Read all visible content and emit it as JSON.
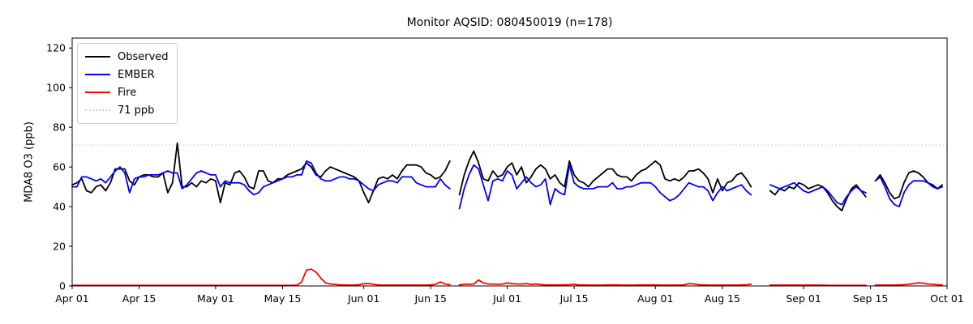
{
  "chart_data": {
    "type": "line",
    "title": "Monitor AQSID: 080450019 (n=178)",
    "xlabel": "",
    "ylabel": "MDA8 O3 (ppb)",
    "ylim": [
      0,
      125
    ],
    "yticks": [
      0,
      20,
      40,
      60,
      80,
      100,
      120
    ],
    "x_unit": "days since Apr 01",
    "x_range_days": 183,
    "xticks": [
      {
        "label": "Apr 01",
        "day": 0
      },
      {
        "label": "Apr 15",
        "day": 14
      },
      {
        "label": "May 01",
        "day": 30
      },
      {
        "label": "May 15",
        "day": 44
      },
      {
        "label": "Jun 01",
        "day": 61
      },
      {
        "label": "Jun 15",
        "day": 75
      },
      {
        "label": "Jul 01",
        "day": 91
      },
      {
        "label": "Jul 15",
        "day": 105
      },
      {
        "label": "Aug 01",
        "day": 122
      },
      {
        "label": "Aug 15",
        "day": 136
      },
      {
        "label": "Sep 01",
        "day": 153
      },
      {
        "label": "Sep 15",
        "day": 167
      },
      {
        "label": "Oct 01",
        "day": 183
      }
    ],
    "threshold": {
      "value": 71,
      "label": "71 ppb",
      "color": "#d3d3d3",
      "style": "dotted"
    },
    "grid": false,
    "legend_position": "upper-left",
    "legend": [
      {
        "label": "Observed",
        "color": "#000000",
        "style": "solid"
      },
      {
        "label": "EMBER",
        "color": "#0000ff",
        "style": "solid"
      },
      {
        "label": "Fire",
        "color": "#ff0000",
        "style": "solid"
      },
      {
        "label": "71 ppb",
        "color": "#d3d3d3",
        "style": "dotted"
      }
    ],
    "series": [
      {
        "name": "Observed",
        "color": "#000000",
        "width": 1.8,
        "values": [
          51,
          52,
          54,
          48,
          47,
          50,
          51,
          48,
          52,
          59,
          59,
          59,
          53,
          51,
          55,
          56,
          56,
          55,
          55,
          57,
          47,
          52,
          72,
          50,
          50,
          52,
          50,
          53,
          52,
          54,
          53,
          42,
          52,
          51,
          57,
          58,
          55,
          50,
          49,
          58,
          58,
          53,
          52,
          54,
          54,
          56,
          57,
          58,
          59,
          62,
          60,
          56,
          55,
          58,
          60,
          59,
          58,
          57,
          56,
          55,
          53,
          47,
          42,
          48,
          54,
          55,
          54,
          56,
          54,
          58,
          61,
          61,
          61,
          60,
          57,
          56,
          54,
          55,
          58,
          63,
          null,
          46,
          56,
          63,
          68,
          62,
          54,
          53,
          58,
          55,
          56,
          60,
          62,
          56,
          60,
          52,
          55,
          59,
          61,
          59,
          54,
          56,
          52,
          50,
          63,
          56,
          53,
          52,
          50,
          53,
          55,
          57,
          59,
          59,
          56,
          55,
          55,
          53,
          56,
          58,
          59,
          61,
          63,
          61,
          54,
          53,
          54,
          53,
          55,
          58,
          58,
          59,
          57,
          54,
          47,
          54,
          48,
          52,
          53,
          56,
          57,
          54,
          50,
          null,
          null,
          null,
          48,
          46,
          49,
          48,
          50,
          49,
          52,
          51,
          49,
          50,
          51,
          50,
          47,
          43,
          40,
          38,
          44,
          49,
          51,
          48,
          45,
          null,
          53,
          56,
          52,
          47,
          44,
          45,
          52,
          57,
          58,
          57,
          55,
          52,
          51,
          49,
          51
        ]
      },
      {
        "name": "EMBER",
        "color": "#0000ff",
        "width": 1.8,
        "values": [
          50,
          50,
          55,
          55,
          54,
          53,
          54,
          52,
          55,
          58,
          60,
          57,
          47,
          54,
          55,
          55,
          56,
          56,
          56,
          57,
          58,
          57,
          57,
          49,
          51,
          54,
          57,
          58,
          57,
          56,
          56,
          50,
          53,
          52,
          52,
          52,
          51,
          48,
          46,
          47,
          50,
          51,
          52,
          53,
          54,
          55,
          55,
          56,
          56,
          63,
          62,
          57,
          54,
          53,
          53,
          54,
          55,
          55,
          54,
          54,
          53,
          51,
          49,
          48,
          51,
          52,
          53,
          53,
          52,
          55,
          55,
          55,
          52,
          51,
          50,
          50,
          50,
          54,
          51,
          49,
          null,
          39,
          49,
          56,
          61,
          59,
          51,
          43,
          53,
          54,
          53,
          58,
          56,
          49,
          52,
          55,
          52,
          50,
          51,
          54,
          41,
          49,
          47,
          46,
          61,
          52,
          50,
          49,
          49,
          49,
          50,
          50,
          50,
          52,
          49,
          49,
          50,
          50,
          51,
          52,
          52,
          52,
          50,
          47,
          45,
          43,
          44,
          46,
          49,
          52,
          51,
          50,
          50,
          48,
          43,
          47,
          50,
          48,
          49,
          50,
          51,
          48,
          46,
          null,
          null,
          null,
          51,
          50,
          49,
          50,
          51,
          52,
          50,
          48,
          47,
          48,
          49,
          50,
          48,
          45,
          42,
          41,
          45,
          48,
          50,
          48,
          47,
          null,
          53,
          55,
          50,
          44,
          41,
          40,
          47,
          51,
          53,
          53,
          53,
          52,
          50,
          49,
          50
        ]
      },
      {
        "name": "Fire",
        "color": "#ff0000",
        "width": 1.8,
        "values": [
          0.3,
          0.3,
          0.3,
          0.3,
          0.3,
          0.3,
          0.3,
          0.3,
          0.3,
          0.3,
          0.3,
          0.3,
          0.3,
          0.3,
          0.3,
          0.3,
          0.3,
          0.3,
          0.3,
          0.3,
          0.3,
          0.3,
          0.3,
          0.3,
          0.3,
          0.3,
          0.3,
          0.3,
          0.3,
          0.3,
          0.3,
          0.3,
          0.3,
          0.3,
          0.3,
          0.3,
          0.3,
          0.3,
          0.3,
          0.3,
          0.3,
          0.3,
          0.3,
          0.3,
          0.3,
          0.3,
          0.3,
          0.4,
          2,
          8,
          8.5,
          7,
          4,
          1.5,
          1,
          0.8,
          0.5,
          0.5,
          0.4,
          0.4,
          0.6,
          1.1,
          1.2,
          0.8,
          0.5,
          0.4,
          0.4,
          0.4,
          0.4,
          0.4,
          0.4,
          0.4,
          0.4,
          0.4,
          0.4,
          0.5,
          0.8,
          2,
          1,
          0.6,
          null,
          0.5,
          0.8,
          0.8,
          1,
          3,
          1.5,
          1,
          1,
          0.8,
          1,
          1.5,
          1.2,
          1,
          1,
          1.2,
          0.8,
          1,
          0.7,
          0.5,
          0.5,
          0.5,
          0.5,
          0.5,
          0.6,
          0.8,
          0.5,
          0.5,
          0.4,
          0.4,
          0.4,
          0.4,
          0.5,
          0.5,
          0.5,
          0.4,
          0.4,
          0.4,
          0.4,
          0.5,
          0.5,
          0.5,
          0.5,
          0.4,
          0.4,
          0.4,
          0.4,
          0.4,
          0.5,
          1.2,
          1,
          0.6,
          0.5,
          0.4,
          0.4,
          0.4,
          0.4,
          0.4,
          0.4,
          0.4,
          0.5,
          0.6,
          0.8,
          null,
          null,
          null,
          0.4,
          0.4,
          0.4,
          0.4,
          0.4,
          0.4,
          0.4,
          0.4,
          0.4,
          0.4,
          0.4,
          0.4,
          0.3,
          0.3,
          0.3,
          0.3,
          0.3,
          0.3,
          0.3,
          0.3,
          0.3,
          null,
          0.4,
          0.4,
          0.4,
          0.4,
          0.4,
          0.5,
          0.6,
          0.8,
          1.2,
          1.6,
          1.4,
          1,
          0.8,
          0.6,
          0.5
        ]
      }
    ]
  }
}
